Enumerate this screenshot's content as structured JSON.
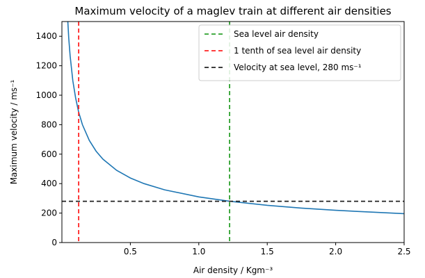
{
  "chart_data": {
    "type": "line",
    "title": "Maximum velocity of a maglev train at different air densities",
    "xlabel": "Air density / Kgm⁻³",
    "ylabel": "Maximum velocity / ms⁻¹",
    "xlim": [
      0,
      2.5
    ],
    "ylim": [
      0,
      1500
    ],
    "xticks": [
      0.5,
      1.0,
      1.5,
      2.0,
      2.5
    ],
    "xtick_labels": [
      "0.5",
      "1.0",
      "1.5",
      "2.0",
      "2.5"
    ],
    "yticks": [
      0,
      200,
      400,
      600,
      800,
      1000,
      1200,
      1400
    ],
    "ytick_labels": [
      "0",
      "200",
      "400",
      "600",
      "800",
      "1000",
      "1200",
      "1400"
    ],
    "grid": false,
    "legend_position": "top-right",
    "series": [
      {
        "x": [
          0.04,
          0.05,
          0.06,
          0.08,
          0.1,
          0.1225,
          0.15,
          0.2,
          0.25,
          0.3,
          0.4,
          0.5,
          0.6,
          0.75,
          1.0,
          1.225,
          1.5,
          1.75,
          2.0,
          2.25,
          2.5
        ],
        "values": [
          1553,
          1389,
          1268,
          1098,
          982,
          885,
          800,
          693,
          620,
          566,
          490,
          438,
          400,
          358,
          310,
          280,
          253,
          234,
          219,
          207,
          196
        ],
        "color": "#1f77b4",
        "style": "solid"
      }
    ],
    "reference_lines": [
      {
        "name": "Sea level air density",
        "orientation": "vertical",
        "value": 1.225,
        "color": "#2ca02c",
        "style": "dashed"
      },
      {
        "name": "1 tenth of sea level air density",
        "orientation": "vertical",
        "value": 0.1225,
        "color": "#ff2222",
        "style": "dashed"
      },
      {
        "name": "Velocity at sea level, 280 ms⁻¹",
        "orientation": "horizontal",
        "value": 280,
        "color": "#222222",
        "style": "dashed"
      }
    ]
  }
}
